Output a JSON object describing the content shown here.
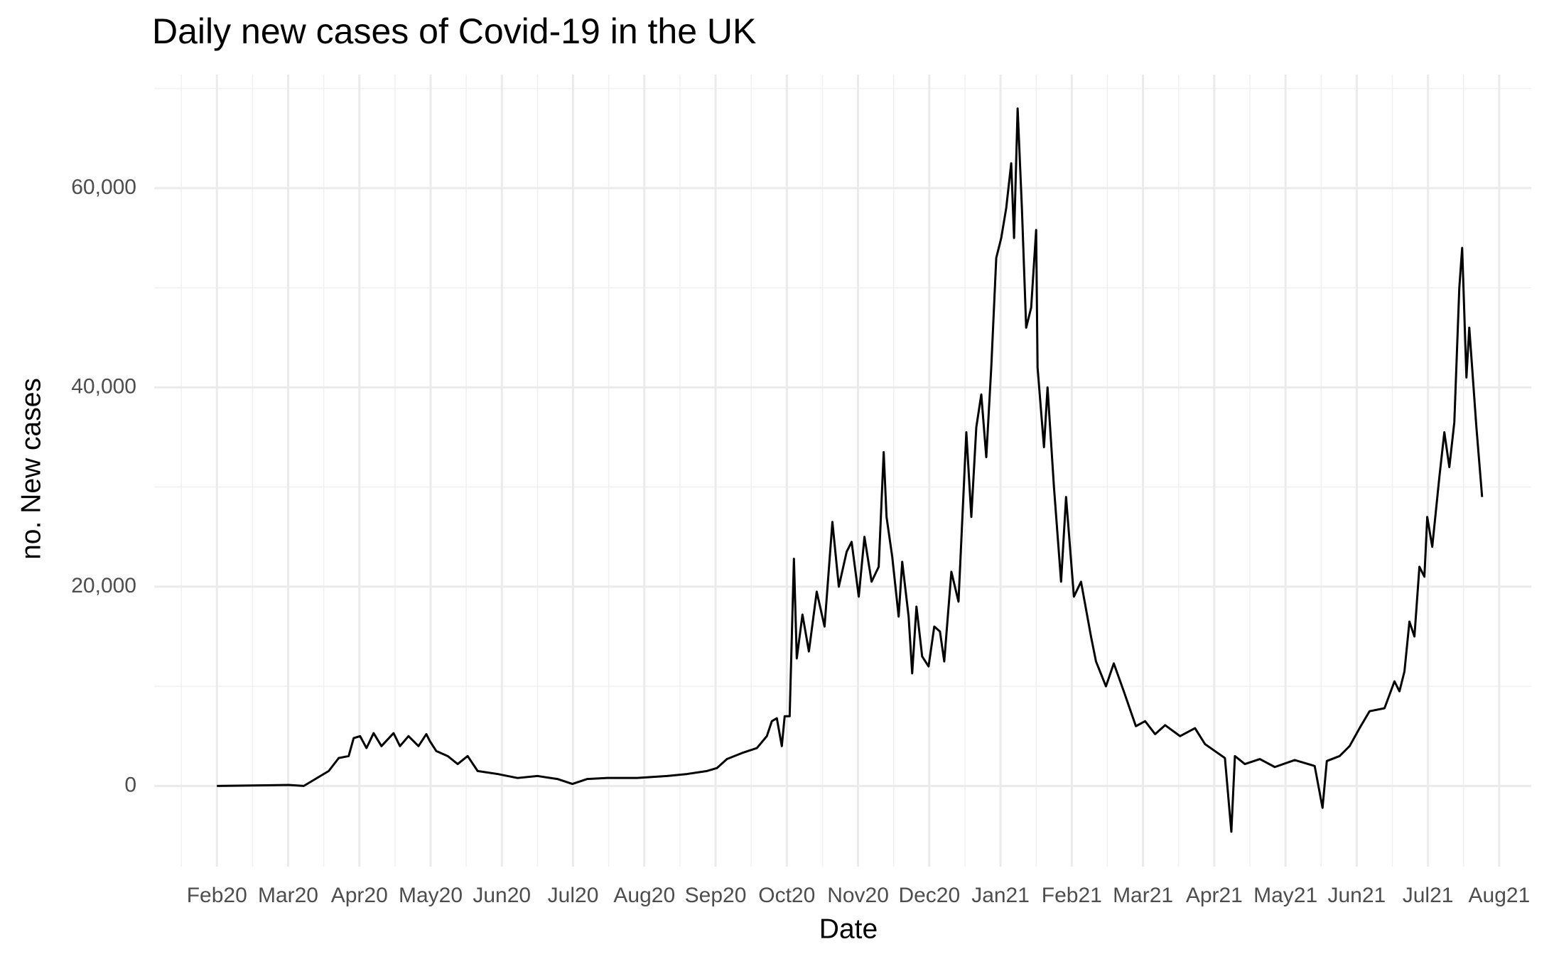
{
  "chart_data": {
    "type": "line",
    "title": "Daily new cases of Covid-19 in the UK",
    "x_label": "Date",
    "y_label": "no. New cases",
    "x": [
      0,
      1.01,
      1.22,
      1.57,
      1.71,
      1.85,
      1.92,
      2.01,
      2.1,
      2.2,
      2.31,
      2.48,
      2.57,
      2.69,
      2.83,
      2.94,
      2.99,
      3.08,
      3.24,
      3.38,
      3.52,
      3.66,
      3.94,
      4.22,
      4.5,
      4.78,
      4.99,
      5.2,
      5.48,
      5.9,
      6.32,
      6.6,
      6.88,
      7.02,
      7.16,
      7.37,
      7.58,
      7.72,
      7.79,
      7.86,
      7.93,
      7.97,
      8.04,
      8.1,
      8.14,
      8.22,
      8.31,
      8.42,
      8.53,
      8.64,
      8.73,
      8.84,
      8.91,
      9.01,
      9.09,
      9.19,
      9.29,
      9.36,
      9.4,
      9.48,
      9.57,
      9.62,
      9.71,
      9.76,
      9.82,
      9.9,
      9.99,
      10.07,
      10.15,
      10.21,
      10.31,
      10.41,
      10.52,
      10.59,
      10.66,
      10.73,
      10.8,
      10.87,
      10.94,
      11.01,
      11.08,
      11.15,
      11.19,
      11.24,
      11.3,
      11.36,
      11.43,
      11.5,
      11.52,
      11.61,
      11.66,
      11.75,
      11.85,
      11.92,
      12.03,
      12.13,
      12.27,
      12.34,
      12.48,
      12.59,
      12.73,
      12.9,
      13.03,
      13.17,
      13.31,
      13.52,
      13.73,
      13.87,
      14.01,
      14.15,
      14.24,
      14.29,
      14.43,
      14.64,
      14.85,
      15.13,
      15.41,
      15.52,
      15.58,
      15.76,
      15.9,
      16.04,
      16.18,
      16.39,
      16.53,
      16.6,
      16.67,
      16.74,
      16.81,
      16.88,
      16.95,
      16.99,
      17.06,
      17.16,
      17.23,
      17.3,
      17.37,
      17.44,
      17.48,
      17.54,
      17.58,
      17.68,
      17.76
    ],
    "series": [
      {
        "name": "New cases",
        "color": "#000000",
        "values": [
          0,
          100,
          0,
          1500,
          2800,
          3000,
          4800,
          5000,
          3800,
          5300,
          4000,
          5300,
          4000,
          5000,
          4000,
          5200,
          4500,
          3500,
          3000,
          2200,
          3000,
          1500,
          1200,
          800,
          1000,
          700,
          200,
          700,
          800,
          800,
          1000,
          1200,
          1500,
          1800,
          2700,
          3300,
          3800,
          5000,
          6500,
          6800,
          4000,
          7000,
          7000,
          22800,
          12800,
          17200,
          13500,
          19500,
          16000,
          26500,
          20000,
          23500,
          24500,
          19000,
          25000,
          20500,
          22000,
          33500,
          27000,
          23000,
          17000,
          22500,
          17000,
          11300,
          18000,
          13000,
          12000,
          16000,
          15500,
          12500,
          21500,
          18500,
          35500,
          27000,
          36000,
          39300,
          33000,
          42000,
          53000,
          55000,
          58000,
          62500,
          55000,
          68000,
          58000,
          46000,
          48000,
          55800,
          42000,
          34000,
          40000,
          30000,
          20500,
          29000,
          19000,
          20500,
          15000,
          12500,
          10000,
          12300,
          9500,
          6000,
          6500,
          5200,
          6100,
          5000,
          5800,
          4200,
          3500,
          2800,
          -4600,
          3000,
          2200,
          2700,
          1900,
          2600,
          2000,
          -2200,
          2500,
          3000,
          4000,
          5800,
          7500,
          7800,
          10500,
          9500,
          11500,
          16500,
          15000,
          22000,
          21000,
          27000,
          24000,
          31000,
          35500,
          32000,
          36500,
          50000,
          54000,
          41000,
          46000,
          36000,
          29000
        ]
      }
    ],
    "xlim": [
      -0.88,
      18.45
    ],
    "xticks": [
      {
        "value": 0,
        "label": "Feb20"
      },
      {
        "value": 1,
        "label": "Mar20"
      },
      {
        "value": 2,
        "label": "Apr20"
      },
      {
        "value": 3,
        "label": "May20"
      },
      {
        "value": 4,
        "label": "Jun20"
      },
      {
        "value": 5,
        "label": "Jul20"
      },
      {
        "value": 6,
        "label": "Aug20"
      },
      {
        "value": 7,
        "label": "Sep20"
      },
      {
        "value": 8,
        "label": "Oct20"
      },
      {
        "value": 9,
        "label": "Nov20"
      },
      {
        "value": 10,
        "label": "Dec20"
      },
      {
        "value": 11,
        "label": "Jan21"
      },
      {
        "value": 12,
        "label": "Feb21"
      },
      {
        "value": 13,
        "label": "Mar21"
      },
      {
        "value": 14,
        "label": "Apr21"
      },
      {
        "value": 15,
        "label": "May21"
      },
      {
        "value": 16,
        "label": "Jun21"
      },
      {
        "value": 17,
        "label": "Jul21"
      },
      {
        "value": 18,
        "label": "Aug21"
      }
    ],
    "ylim": [
      -8100,
      71400
    ],
    "yticks": [
      0,
      {
        "value": 20000,
        "label": "20,000"
      },
      {
        "value": 40000,
        "label": "40,000"
      },
      {
        "value": 60000,
        "label": "60,000"
      }
    ],
    "grid": true
  }
}
